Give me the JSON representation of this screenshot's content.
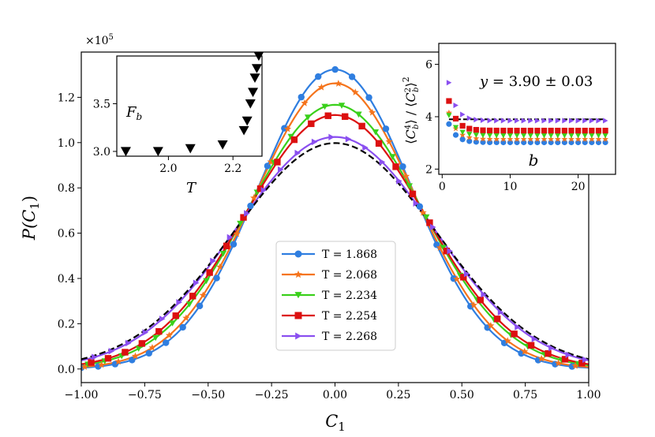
{
  "chart_data": [
    {
      "id": "main",
      "type": "line",
      "xlabel": "C_1",
      "ylabel": "P(C_1)",
      "xlim": [
        -1.0,
        1.0
      ],
      "ylim": [
        -0.06,
        1.4
      ],
      "xticks": [
        -1.0,
        -0.75,
        -0.5,
        -0.25,
        0.0,
        0.25,
        0.5,
        0.75,
        1.0
      ],
      "xticklabels": [
        "−1.00",
        "−0.75",
        "−0.50",
        "−0.25",
        "0.00",
        "0.25",
        "0.50",
        "0.75",
        "1.00"
      ],
      "yticks": [
        0.0,
        0.2,
        0.4,
        0.6,
        0.8,
        1.0,
        1.2
      ],
      "yticklabels": [
        "0.0",
        "0.2",
        "0.4",
        "0.6",
        "0.8",
        "1.0",
        "1.2"
      ],
      "legend_position": "center-bottom",
      "series": [
        {
          "name": "T = 1.868",
          "color": "#2f7ee0",
          "marker": "circle",
          "peak": 1.323,
          "sigma": 0.302
        },
        {
          "name": "T = 2.068",
          "color": "#f5741c",
          "marker": "star",
          "peak": 1.262,
          "sigma": 0.316
        },
        {
          "name": "T = 2.234",
          "color": "#3ad01b",
          "marker": "triangle-down",
          "peak": 1.167,
          "sigma": 0.342
        },
        {
          "name": "T = 2.254",
          "color": "#dc1010",
          "marker": "square",
          "peak": 1.122,
          "sigma": 0.355
        },
        {
          "name": "T = 2.268",
          "color": "#8a4ff0",
          "marker": "triangle-right",
          "peak": 1.025,
          "sigma": 0.389
        }
      ],
      "reference": {
        "style": "dashed",
        "color": "#000000",
        "peak": 0.998,
        "sigma": 0.399
      }
    },
    {
      "id": "inset-left",
      "type": "scatter",
      "xlabel": "T",
      "annotation": "F_b",
      "multiplier": "×10^5",
      "xlim": [
        1.84,
        2.29
      ],
      "ylim": [
        2.95,
        4.0
      ],
      "xticks": [
        2.0,
        2.2
      ],
      "xticklabels": [
        "2.0",
        "2.2"
      ],
      "yticks": [
        3.0,
        3.5
      ],
      "yticklabels": [
        "3.0",
        "3.5"
      ],
      "marker": "triangle-down",
      "color": "#000000",
      "x": [
        1.868,
        1.968,
        2.068,
        2.168,
        2.234,
        2.244,
        2.254,
        2.262,
        2.268,
        2.274,
        2.28
      ],
      "y": [
        3.0,
        3.0,
        3.03,
        3.07,
        3.22,
        3.32,
        3.5,
        3.62,
        3.77,
        3.87,
        4.0
      ]
    },
    {
      "id": "inset-right",
      "type": "scatter",
      "xlabel": "b",
      "ylabel": "⟨C_b^4⟩ / ⟨C_b^2⟩^2",
      "annotation": "y = 3.90 ± 0.03",
      "xlim": [
        -0.5,
        25.5
      ],
      "ylim": [
        1.8,
        6.8
      ],
      "xticks": [
        0,
        10,
        20
      ],
      "xticklabels": [
        "0",
        "10",
        "20"
      ],
      "yticks": [
        2,
        4,
        6
      ],
      "yticklabels": [
        "2",
        "4",
        "6"
      ],
      "reference_line": {
        "y": 3.9,
        "style": "dashed",
        "color": "#000000"
      },
      "series": [
        {
          "name": "T = 1.868",
          "color": "#2f7ee0",
          "marker": "circle",
          "start": 3.72,
          "plateau": 3.02
        },
        {
          "name": "T = 2.068",
          "color": "#f5741c",
          "marker": "star",
          "start": 4.15,
          "plateau": 3.14
        },
        {
          "name": "T = 2.234",
          "color": "#3ad01b",
          "marker": "triangle-down",
          "start": 4.05,
          "plateau": 3.28
        },
        {
          "name": "T = 2.254",
          "color": "#dc1010",
          "marker": "square",
          "start": 4.6,
          "plateau": 3.47
        },
        {
          "name": "T = 2.268",
          "color": "#8a4ff0",
          "marker": "triangle-right",
          "start": 5.3,
          "plateau": 3.85
        }
      ]
    }
  ]
}
